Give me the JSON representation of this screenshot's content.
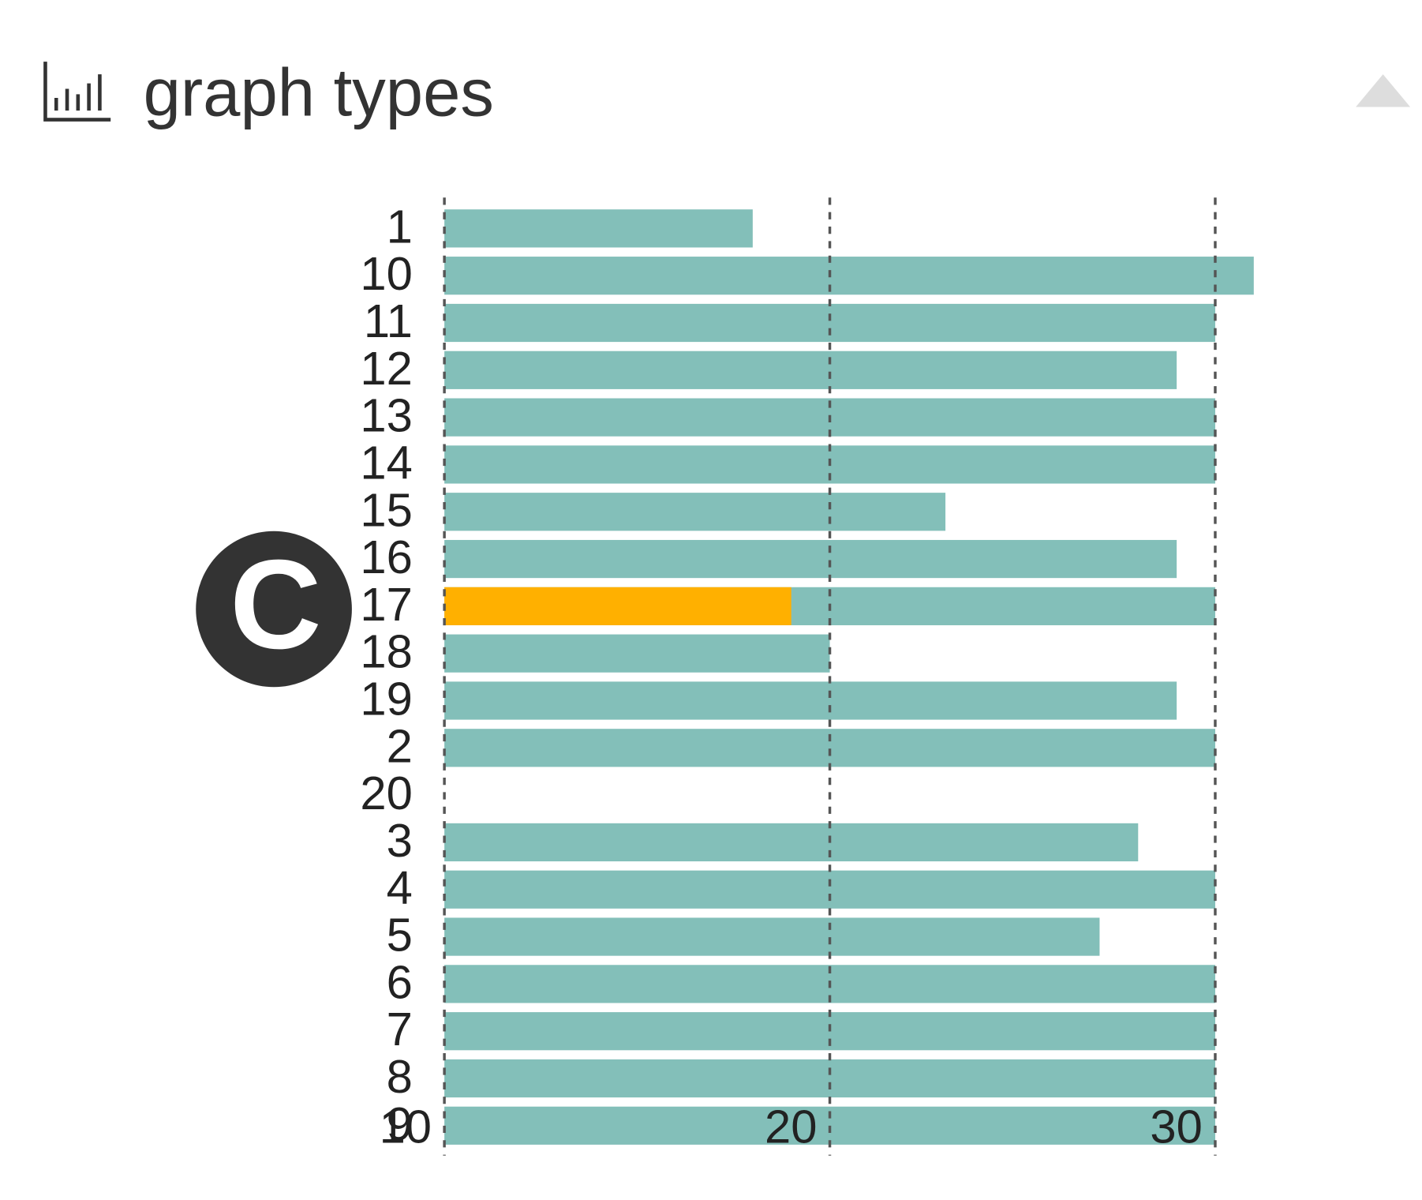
{
  "chart_data": {
    "type": "bar",
    "orientation": "horizontal",
    "title": "graph types",
    "annotation": "C",
    "categories": [
      "1",
      "10",
      "11",
      "12",
      "13",
      "14",
      "15",
      "16",
      "17",
      "18",
      "19",
      "2",
      "20",
      "3",
      "4",
      "5",
      "6",
      "7",
      "8",
      "9"
    ],
    "series": [
      {
        "color": "#83bfb9",
        "values": [
          18,
          31,
          30,
          29,
          30,
          30,
          23,
          29,
          30,
          20,
          29,
          30,
          null,
          28,
          30,
          27,
          30,
          30,
          30,
          30
        ]
      },
      {
        "color": "#ffb000",
        "values": [
          null,
          null,
          null,
          null,
          null,
          null,
          null,
          null,
          19,
          null,
          null,
          null,
          null,
          null,
          null,
          null,
          null,
          null,
          null,
          null
        ]
      }
    ],
    "xlim": [
      10,
      31
    ],
    "xticks": [
      10,
      20,
      30
    ],
    "grid": true
  }
}
